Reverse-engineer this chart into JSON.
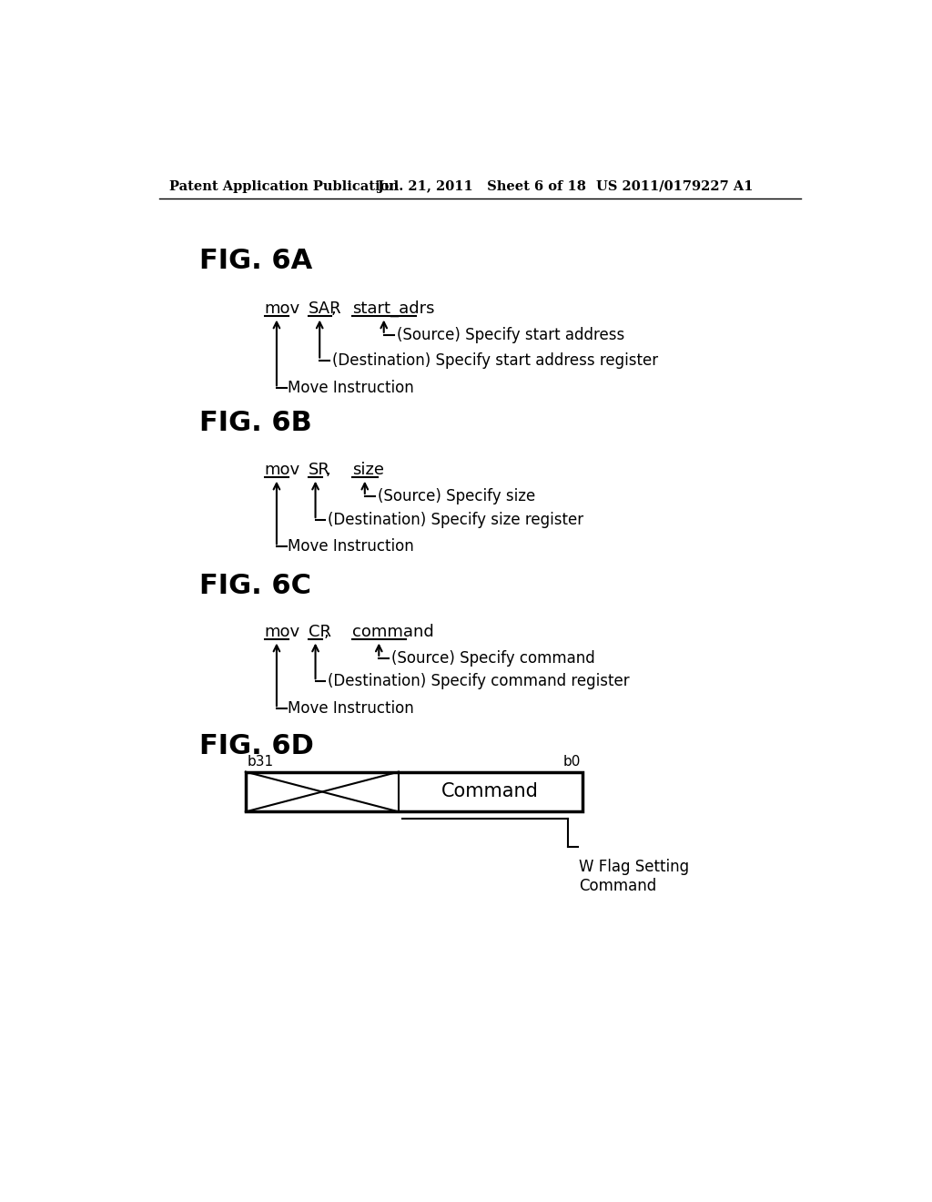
{
  "bg_color": "#ffffff",
  "header_left": "Patent Application Publication",
  "header_mid": "Jul. 21, 2011   Sheet 6 of 18",
  "header_right": "US 2011/0179227 A1",
  "fig6a_label": "FIG. 6A",
  "fig6b_label": "FIG. 6B",
  "fig6c_label": "FIG. 6C",
  "fig6d_label": "FIG. 6D",
  "fig6a": {
    "arrow1_label": "Move Instruction",
    "arrow2_label": "(Destination) Specify start address register",
    "arrow3_label": "(Source) Specify start address"
  },
  "fig6b": {
    "arrow1_label": "Move Instruction",
    "arrow2_label": "(Destination) Specify size register",
    "arrow3_label": "(Source) Specify size"
  },
  "fig6c": {
    "arrow1_label": "Move Instruction",
    "arrow2_label": "(Destination) Specify command register",
    "arrow3_label": "(Source) Specify command"
  },
  "fig6d": {
    "b31_label": "b31",
    "b0_label": "b0",
    "command_label": "Command",
    "flag_label": "W Flag Setting\nCommand"
  }
}
